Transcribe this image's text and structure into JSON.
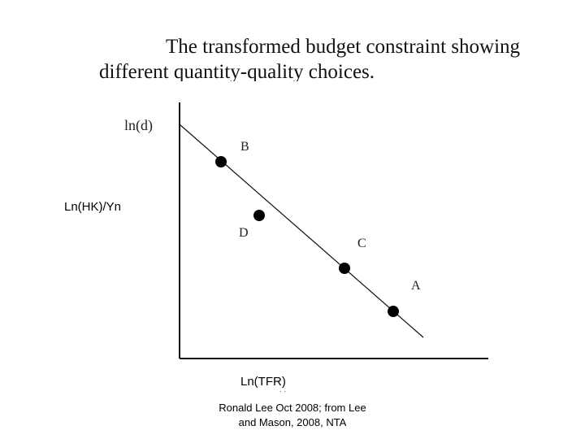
{
  "title": {
    "line1": "The transformed budget constraint showing",
    "line2": "different quantity-quality choices."
  },
  "axes": {
    "y_original_label": "ln(d)",
    "y_overlay_label": "Ln(HK)/Yn",
    "x_overlay_label": "Ln(TFR)"
  },
  "points": [
    {
      "id": "B",
      "label": "B"
    },
    {
      "id": "D",
      "label": "D"
    },
    {
      "id": "C",
      "label": "C"
    },
    {
      "id": "A",
      "label": "A"
    }
  ],
  "credit": {
    "line1": "Ronald Lee Oct 2008; from Lee",
    "line2": "and Mason, 2008, NTA"
  },
  "colors": {
    "ink": "#000000",
    "axis": "#111111"
  }
}
